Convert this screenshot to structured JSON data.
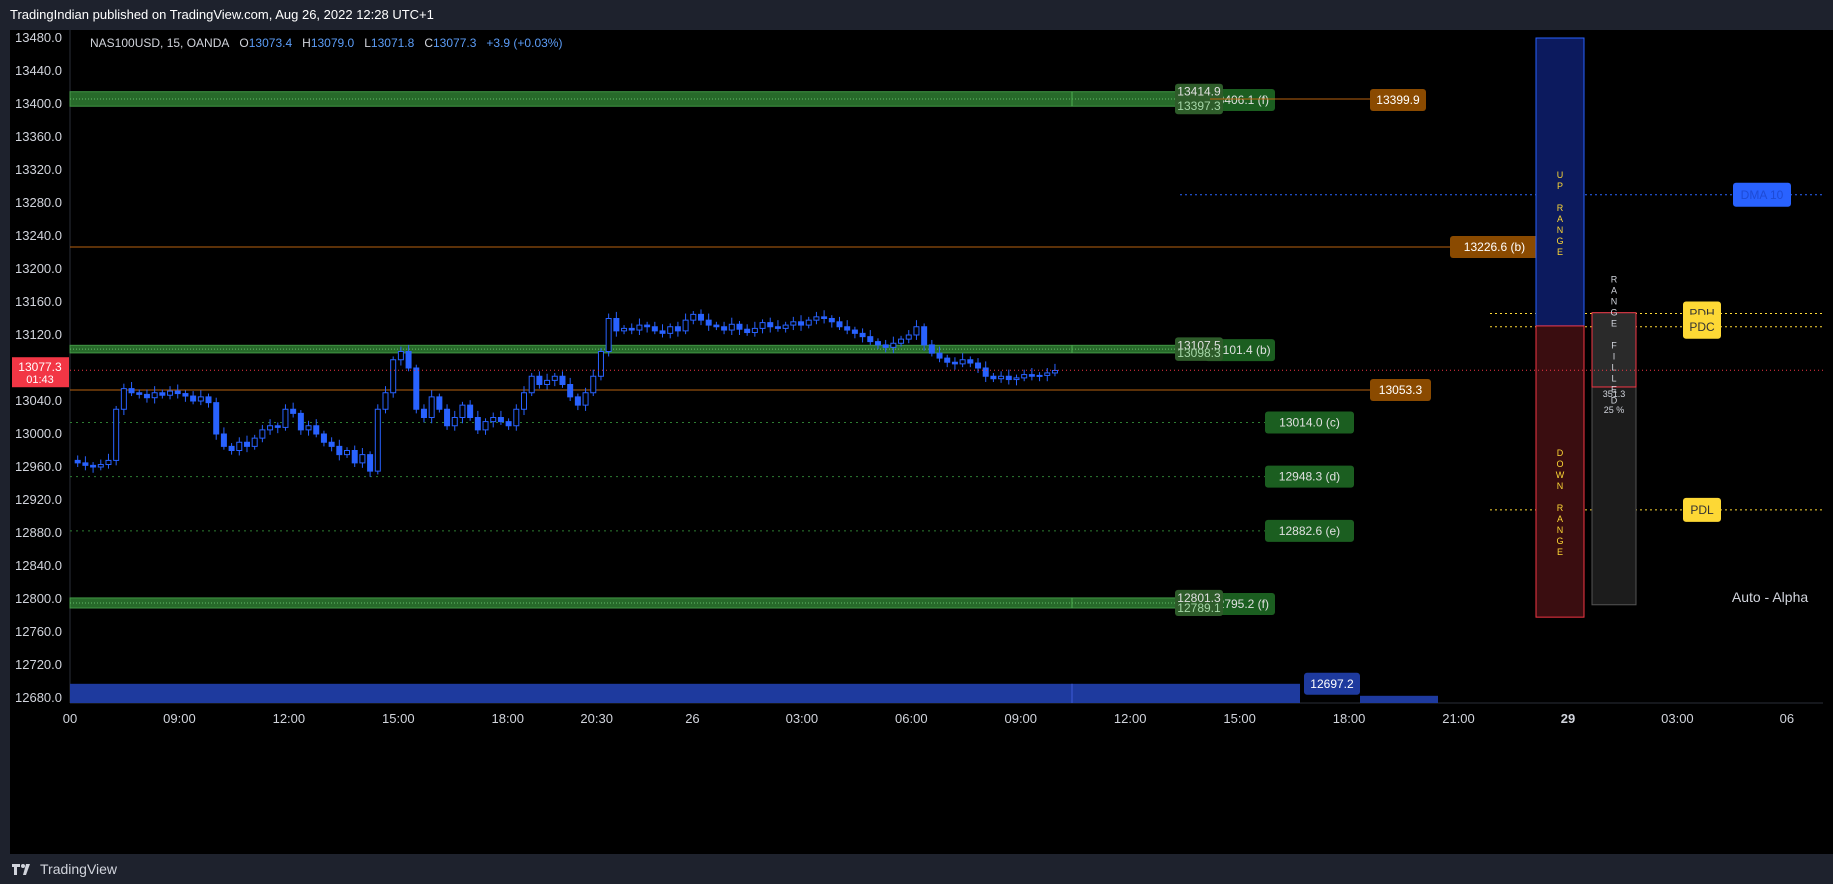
{
  "header": {
    "published": "TradingIndian published on TradingView.com, Aug 26, 2022 12:28 UTC+1"
  },
  "legend": {
    "symbol": "NAS100USD, 15, OANDA",
    "o_label": "O",
    "o": "13073.4",
    "h_label": "H",
    "h": "13079.0",
    "l_label": "L",
    "l": "13071.8",
    "c_label": "C",
    "c": "13077.3",
    "change": "+3.9 (+0.03%)"
  },
  "footer": {
    "brand": "TradingView",
    "brand_icon": "tradingview-logo-icon"
  },
  "last_price": {
    "value": "13077.3",
    "countdown": "01:43",
    "color": "#f23645"
  },
  "watermark": "Auto - Alpha",
  "colors": {
    "candle": "#2962ff",
    "zone": "#4caf50",
    "orange": "#8a4a00",
    "blue_zone": "#1e3a9e",
    "yellow": "#fdd835"
  },
  "chart_data": {
    "type": "candlestick",
    "ylim": [
      12680,
      13500
    ],
    "y_ticks": [
      "13480.0",
      "13440.0",
      "13400.0",
      "13360.0",
      "13320.0",
      "13280.0",
      "13240.0",
      "13200.0",
      "13160.0",
      "13120.0",
      "13040.0",
      "13000.0",
      "12960.0",
      "12920.0",
      "12880.0",
      "12840.0",
      "12800.0",
      "12760.0",
      "12720.0",
      "12680.0"
    ],
    "x_ticks": [
      {
        "t": 0,
        "label": "00",
        "bold": false
      },
      {
        "t": 32,
        "label": "09:00",
        "bold": false
      },
      {
        "t": 64,
        "label": "12:00",
        "bold": false
      },
      {
        "t": 96,
        "label": "15:00",
        "bold": false
      },
      {
        "t": 128,
        "label": "18:00",
        "bold": false
      },
      {
        "t": 154,
        "label": "20:30",
        "bold": false
      },
      {
        "t": 182,
        "label": "26",
        "bold": false
      },
      {
        "t": 214,
        "label": "03:00",
        "bold": false
      },
      {
        "t": 246,
        "label": "06:00",
        "bold": false
      },
      {
        "t": 278,
        "label": "09:00",
        "bold": false
      },
      {
        "t": 310,
        "label": "12:00",
        "bold": false
      },
      {
        "t": 342,
        "label": "15:00",
        "bold": false
      },
      {
        "t": 374,
        "label": "18:00",
        "bold": false
      },
      {
        "t": 406,
        "label": "21:00",
        "bold": false
      },
      {
        "t": 438,
        "label": "29",
        "bold": true
      },
      {
        "t": 470,
        "label": "03:00",
        "bold": false
      },
      {
        "t": 502,
        "label": "06",
        "bold": false
      }
    ],
    "closes": [
      12968,
      12965,
      12962,
      12960,
      12963,
      12968,
      13030,
      13055,
      13050,
      13048,
      13044,
      13050,
      13047,
      13052,
      13049,
      13046,
      13040,
      13045,
      13038,
      13000,
      12985,
      12980,
      12990,
      12985,
      12995,
      13005,
      13010,
      13008,
      13030,
      13025,
      13005,
      13010,
      13000,
      12990,
      12985,
      12975,
      12980,
      12965,
      12975,
      12955,
      13030,
      13050,
      13090,
      13100,
      13080,
      13030,
      13020,
      13045,
      13030,
      13010,
      13020,
      13035,
      13020,
      13005,
      13015,
      13020,
      13015,
      13010,
      13030,
      13050,
      13070,
      13060,
      13065,
      13070,
      13060,
      13045,
      13035,
      13050,
      13070,
      13100,
      13140,
      13125,
      13128,
      13126,
      13132,
      13130,
      13125,
      13122,
      13130,
      13125,
      13138,
      13145,
      13138,
      13132,
      13130,
      13126,
      13133,
      13127,
      13123,
      13128,
      13135,
      13130,
      13128,
      13132,
      13136,
      13132,
      13138,
      13142,
      13140,
      13136,
      13130,
      13126,
      13122,
      13118,
      13112,
      13108,
      13105,
      13110,
      13115,
      13120,
      13130,
      13108,
      13098,
      13092,
      13087,
      13085,
      13090,
      13086,
      13080,
      13070,
      13067,
      13070,
      13066,
      13068,
      13072,
      13070,
      13071,
      13074,
      13077
    ],
    "candle_t0": 0,
    "levels": [
      {
        "price": 13226.6,
        "label": "13226.6 (b)",
        "style": "solid",
        "color": "#b8620f"
      },
      {
        "price": 13053.3,
        "label": "13053.3",
        "style": "solid",
        "color": "#b8620f"
      },
      {
        "price": 13014.0,
        "label": "13014.0 (c)",
        "style": "dotted",
        "color": "#2e7d32"
      },
      {
        "price": 12948.3,
        "label": "12948.3 (d)",
        "style": "dotted",
        "color": "#2e7d32"
      },
      {
        "price": 12882.6,
        "label": "12882.6 (e)",
        "style": "dotted",
        "color": "#2e7d32"
      }
    ],
    "zones": [
      {
        "top": 13414.9,
        "bottom": 13397.3,
        "top_label": "13414.9",
        "bottom_label": "13397.3",
        "side_label": "13406.1 (f)",
        "orange_label": "13399.9"
      },
      {
        "top": 13107.5,
        "bottom": 13098.3,
        "top_label": "13107.5",
        "bottom_label": "13098.3",
        "side_label": "13101.4 (b)"
      },
      {
        "top": 12801.3,
        "bottom": 12789.1,
        "top_label": "12801.3",
        "bottom_label": "12789.1",
        "side_label": "12795.2 (f)"
      }
    ],
    "bottom_zone": {
      "top": 12697.2,
      "label": "12697.2"
    },
    "dma": {
      "price": 13290,
      "label": "DMA 10"
    },
    "pdh": {
      "price": 13146,
      "label": "PDH"
    },
    "pdc": {
      "price": 13130,
      "label": "PDC"
    },
    "pdl": {
      "price": 12908,
      "label": "PDL"
    },
    "up_range": {
      "top": 13480,
      "bottom": 13131,
      "label": "UP RANGE"
    },
    "down_range": {
      "top": 13131,
      "bottom": 12778,
      "label": "DOWN RANGE"
    },
    "range_filled": {
      "top": 13147,
      "bottom": 12793,
      "fill_bottom": 13057,
      "label": "RANGE FILLED",
      "value": "351.3",
      "percent": "25 %"
    }
  }
}
